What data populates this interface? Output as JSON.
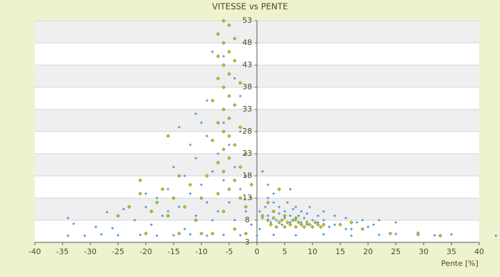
{
  "chart_data": {
    "type": "scatter",
    "title": "VITESSE vs PENTE",
    "x_label": "Pente [%]",
    "xlim": [
      -40,
      40
    ],
    "xticks": [
      -40,
      -35,
      -30,
      -25,
      -20,
      -15,
      -10,
      -5,
      0,
      5,
      10,
      15,
      20,
      25,
      30,
      35,
      40
    ],
    "ylim": [
      3,
      53
    ],
    "yticks": [
      3,
      8,
      13,
      18,
      23,
      28,
      33,
      38,
      43,
      48,
      53
    ],
    "grid": true,
    "series": [
      {
        "color": "#3b8fd9",
        "marker": "plus",
        "x": [
          -34,
          -31,
          -28,
          -25,
          -21,
          -18,
          -15,
          -12,
          -9,
          -6,
          -3,
          0,
          3,
          7,
          12,
          17,
          22,
          25,
          29,
          32,
          35,
          43,
          -34,
          -33,
          -29,
          -27,
          -26,
          -24,
          -22,
          -20,
          -19,
          -18,
          -17,
          -16,
          -15,
          -14,
          -13,
          -12,
          -12,
          -11,
          -11,
          -10,
          -10,
          -9,
          -9,
          -8,
          -8,
          -8,
          -7,
          -7,
          -7,
          -6,
          -6,
          -5,
          -5,
          -4,
          -4,
          -3,
          -3,
          -2,
          -2,
          -1,
          -1,
          -14,
          -13,
          -16,
          -20,
          -6,
          -9,
          -11,
          -3,
          -4,
          0.5,
          1,
          1.5,
          2,
          2,
          2.5,
          3,
          3,
          3.5,
          4,
          4,
          4.5,
          5,
          5,
          5.5,
          6,
          6,
          6.5,
          7,
          7,
          7.5,
          8,
          8,
          8.5,
          9,
          9,
          9.5,
          10,
          10,
          11,
          11,
          12,
          12,
          13,
          14,
          15,
          16,
          17,
          18,
          19,
          20,
          21,
          22,
          25,
          16,
          14,
          3,
          2,
          1,
          6,
          0.5
        ],
        "values": [
          4.5,
          4.5,
          4.8,
          4.6,
          4.7,
          4.5,
          4.6,
          4.8,
          4.5,
          4.7,
          4.6,
          4.5,
          4.7,
          4.6,
          4.8,
          4.5,
          4.7,
          4.9,
          5.2,
          4.6,
          4.8,
          4.5,
          8.5,
          7.2,
          6.5,
          9.8,
          6.2,
          10.5,
          8,
          11,
          7,
          13,
          9,
          15,
          20,
          11,
          18,
          14,
          25,
          9,
          22,
          16,
          30,
          12,
          27,
          19,
          8,
          46,
          23,
          14,
          10,
          30,
          17,
          25,
          12,
          20,
          8,
          15,
          28,
          10,
          18,
          13,
          7,
          29,
          6,
          10,
          14,
          45,
          35,
          32,
          36,
          40,
          10,
          8.5,
          11,
          9,
          13,
          7.5,
          10,
          12,
          8,
          9.5,
          11,
          7,
          10,
          8.5,
          12,
          9,
          7.5,
          10.5,
          8,
          11,
          9,
          7.5,
          10,
          8.5,
          9.5,
          7,
          11,
          8,
          6.5,
          9,
          7.5,
          8,
          10,
          6.5,
          9,
          7,
          8.5,
          6,
          7.5,
          8,
          6.5,
          7,
          8,
          7.5,
          6,
          7,
          14,
          16,
          19,
          15,
          6
        ]
      },
      {
        "color": "#d4d424",
        "marker": "diamond",
        "x": [
          -6,
          -5,
          -7,
          -4,
          -6,
          -5,
          -7,
          -4,
          -6,
          -5,
          -7,
          -3,
          -6,
          -5,
          -8,
          -4,
          -6,
          -5,
          -7,
          -3,
          -6,
          -5,
          -8,
          -4,
          -6,
          -2,
          -5,
          -7,
          -3,
          -6,
          -9,
          -4,
          -1,
          -5,
          -7,
          -3,
          -2,
          -6,
          -4,
          -8,
          -25,
          -23,
          -21,
          -21,
          -19,
          -18,
          -17,
          -16,
          -15,
          -14,
          -13,
          -12,
          -11,
          -10,
          -16,
          -14,
          -20,
          -10,
          -2,
          1,
          2,
          2.5,
          3,
          3.5,
          4,
          4.5,
          5,
          5.5,
          6,
          6.5,
          7,
          7.5,
          8,
          8.5,
          9,
          9.5,
          10,
          10.5,
          11,
          11.5,
          12,
          7,
          5,
          3,
          15,
          17,
          19,
          24,
          29,
          33,
          4,
          2
        ],
        "values": [
          53,
          52,
          50,
          49,
          48,
          46,
          45,
          44,
          43,
          41,
          40,
          39,
          38,
          36,
          35,
          34,
          33,
          31,
          30,
          29,
          28,
          27,
          26,
          25,
          24,
          23,
          22,
          21,
          20,
          19,
          18,
          17,
          16,
          15,
          14,
          13,
          11,
          10,
          6,
          5,
          9,
          11,
          14,
          17,
          10,
          12,
          15,
          9,
          13,
          18,
          11,
          16,
          8,
          13,
          27,
          5,
          5,
          5,
          5,
          9,
          8,
          7,
          8.5,
          6.5,
          7.5,
          8,
          6.5,
          7.5,
          7,
          8,
          6.5,
          7.5,
          7,
          6.5,
          7.5,
          7,
          6.5,
          7.5,
          7,
          6.5,
          7,
          8.5,
          9,
          10,
          7,
          7.5,
          6,
          5,
          4.8,
          4.5,
          15,
          12
        ]
      }
    ]
  }
}
